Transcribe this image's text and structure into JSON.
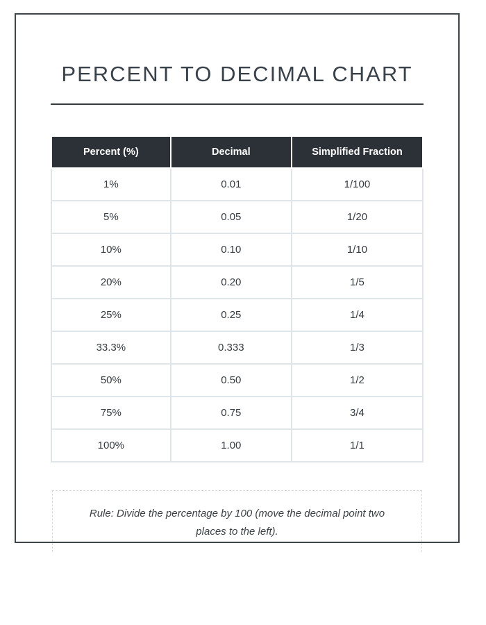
{
  "page": {
    "title": "PERCENT TO DECIMAL CHART",
    "table": {
      "headers": [
        "Percent (%)",
        "Decimal",
        "Simplified Fraction"
      ],
      "rows": [
        [
          "1%",
          "0.01",
          "1/100"
        ],
        [
          "5%",
          "0.05",
          "1/20"
        ],
        [
          "10%",
          "0.10",
          "1/10"
        ],
        [
          "20%",
          "0.20",
          "1/5"
        ],
        [
          "25%",
          "0.25",
          "1/4"
        ],
        [
          "33.3%",
          "0.333",
          "1/3"
        ],
        [
          "50%",
          "0.50",
          "1/2"
        ],
        [
          "75%",
          "0.75",
          "3/4"
        ],
        [
          "100%",
          "1.00",
          "1/1"
        ]
      ]
    },
    "note": "Rule: Divide the percentage by 100 (move the decimal point two\nplaces to the left).",
    "colors": {
      "page_border": "#3e4449",
      "title_text": "#39424a",
      "title_rule": "#333a40",
      "header_bg": "#2b3137",
      "header_text": "#ffffff",
      "cell_text": "#363b40",
      "cell_divider": "#dfe5e8",
      "note_dash_border": "#d8d8d8"
    }
  }
}
